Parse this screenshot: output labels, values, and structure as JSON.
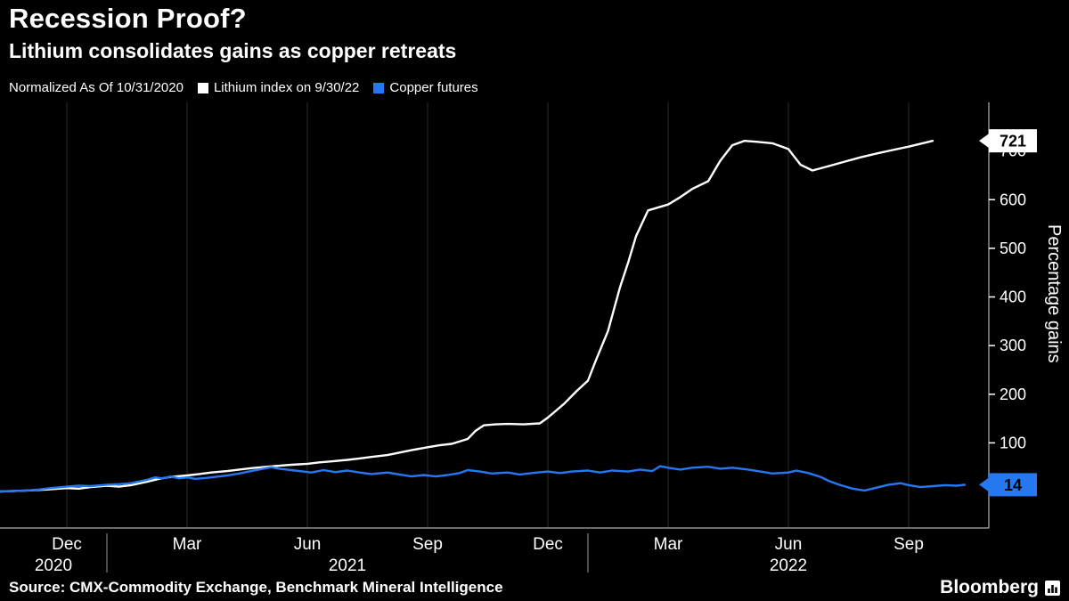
{
  "header": {
    "title": "Recession Proof?",
    "subtitle": "Lithium consolidates gains as copper retreats"
  },
  "legend": {
    "note": "Normalized As Of 10/31/2020",
    "items": [
      {
        "label": "Lithium index on 9/30/22",
        "color": "#ffffff"
      },
      {
        "label": "Copper futures",
        "color": "#2577f2"
      }
    ]
  },
  "chart_data": {
    "type": "line",
    "title": "Recession Proof?",
    "subtitle": "Lithium consolidates gains as copper retreats",
    "note": "Normalized As Of 10/31/2020",
    "ylabel": "Percentage gains",
    "ylim": [
      -75,
      800
    ],
    "yticks": [
      100,
      200,
      300,
      400,
      500,
      600,
      700
    ],
    "x_unit": "months since 2020-11-01",
    "xlim": [
      -0.667,
      24.0
    ],
    "xticks": [
      {
        "m": 1,
        "label": "Dec"
      },
      {
        "m": 4,
        "label": "Mar"
      },
      {
        "m": 7,
        "label": "Jun"
      },
      {
        "m": 10,
        "label": "Sep"
      },
      {
        "m": 13,
        "label": "Dec"
      },
      {
        "m": 16,
        "label": "Mar"
      },
      {
        "m": 19,
        "label": "Jun"
      },
      {
        "m": 22,
        "label": "Sep"
      }
    ],
    "year_ticks": [
      {
        "label": "2020",
        "start": -0.667,
        "end": 2
      },
      {
        "label": "2021",
        "start": 2,
        "end": 14
      },
      {
        "label": "2022",
        "start": 14,
        "end": 24
      }
    ],
    "colors": {
      "background": "#000000",
      "grid": "#2d2d2d",
      "axis": "#d9d9d9",
      "text": "#ffffff"
    },
    "legend_position": "top",
    "grid": "vertical-only",
    "series": [
      {
        "id": "lithium",
        "name": "Lithium index on 9/30/22",
        "color": "#ffffff",
        "end_label": "721",
        "end_value": 721,
        "points": [
          [
            -0.667,
            0
          ],
          [
            0,
            2
          ],
          [
            0.5,
            4
          ],
          [
            1,
            7
          ],
          [
            1.3,
            6
          ],
          [
            1.6,
            9
          ],
          [
            2,
            12
          ],
          [
            2.3,
            10
          ],
          [
            2.6,
            13
          ],
          [
            3,
            20
          ],
          [
            3.3,
            26
          ],
          [
            3.6,
            30
          ],
          [
            4,
            33
          ],
          [
            4.3,
            36
          ],
          [
            4.6,
            39
          ],
          [
            5,
            42
          ],
          [
            5.3,
            45
          ],
          [
            5.6,
            48
          ],
          [
            6,
            51
          ],
          [
            6.3,
            53
          ],
          [
            6.6,
            55
          ],
          [
            7,
            57
          ],
          [
            7.3,
            60
          ],
          [
            7.6,
            62
          ],
          [
            8,
            65
          ],
          [
            8.3,
            68
          ],
          [
            8.6,
            71
          ],
          [
            9,
            75
          ],
          [
            9.3,
            80
          ],
          [
            9.6,
            85
          ],
          [
            10,
            91
          ],
          [
            10.3,
            95
          ],
          [
            10.6,
            98
          ],
          [
            11,
            108
          ],
          [
            11.2,
            125
          ],
          [
            11.4,
            136
          ],
          [
            11.7,
            138
          ],
          [
            12,
            139
          ],
          [
            12.4,
            138
          ],
          [
            12.8,
            140
          ],
          [
            13,
            152
          ],
          [
            13.4,
            180
          ],
          [
            13.7,
            205
          ],
          [
            14,
            228
          ],
          [
            14.2,
            270
          ],
          [
            14.5,
            330
          ],
          [
            14.8,
            420
          ],
          [
            15,
            470
          ],
          [
            15.2,
            525
          ],
          [
            15.5,
            578
          ],
          [
            16,
            590
          ],
          [
            16.3,
            605
          ],
          [
            16.6,
            622
          ],
          [
            17,
            638
          ],
          [
            17.3,
            680
          ],
          [
            17.6,
            712
          ],
          [
            17.9,
            721
          ],
          [
            18.2,
            719
          ],
          [
            18.6,
            716
          ],
          [
            19,
            704
          ],
          [
            19.3,
            672
          ],
          [
            19.6,
            660
          ],
          [
            20,
            669
          ],
          [
            20.4,
            678
          ],
          [
            20.8,
            687
          ],
          [
            21.2,
            695
          ],
          [
            21.6,
            702
          ],
          [
            22,
            709
          ],
          [
            22.3,
            715
          ],
          [
            22.6,
            721
          ]
        ]
      },
      {
        "id": "copper",
        "name": "Copper futures",
        "color": "#2577f2",
        "end_label": "14",
        "end_value": 14,
        "points": [
          [
            -0.667,
            0
          ],
          [
            0,
            2
          ],
          [
            0.3,
            4
          ],
          [
            0.6,
            7
          ],
          [
            1,
            10
          ],
          [
            1.3,
            12
          ],
          [
            1.6,
            11
          ],
          [
            2,
            14
          ],
          [
            2.3,
            15
          ],
          [
            2.6,
            17
          ],
          [
            3,
            24
          ],
          [
            3.2,
            29
          ],
          [
            3.4,
            27
          ],
          [
            3.6,
            31
          ],
          [
            3.8,
            27
          ],
          [
            4,
            29
          ],
          [
            4.2,
            26
          ],
          [
            4.5,
            28
          ],
          [
            4.8,
            31
          ],
          [
            5,
            33
          ],
          [
            5.3,
            37
          ],
          [
            5.6,
            42
          ],
          [
            5.9,
            47
          ],
          [
            6.1,
            50
          ],
          [
            6.3,
            47
          ],
          [
            6.6,
            44
          ],
          [
            6.9,
            41
          ],
          [
            7.1,
            39
          ],
          [
            7.4,
            44
          ],
          [
            7.7,
            40
          ],
          [
            8,
            43
          ],
          [
            8.3,
            39
          ],
          [
            8.6,
            36
          ],
          [
            9,
            39
          ],
          [
            9.3,
            35
          ],
          [
            9.6,
            31
          ],
          [
            9.9,
            34
          ],
          [
            10.2,
            31
          ],
          [
            10.5,
            34
          ],
          [
            10.8,
            38
          ],
          [
            11,
            44
          ],
          [
            11.3,
            41
          ],
          [
            11.6,
            37
          ],
          [
            12,
            39
          ],
          [
            12.3,
            35
          ],
          [
            12.6,
            38
          ],
          [
            13,
            41
          ],
          [
            13.3,
            38
          ],
          [
            13.6,
            41
          ],
          [
            14,
            43
          ],
          [
            14.3,
            39
          ],
          [
            14.6,
            43
          ],
          [
            15,
            41
          ],
          [
            15.3,
            45
          ],
          [
            15.6,
            42
          ],
          [
            15.8,
            52
          ],
          [
            16,
            49
          ],
          [
            16.3,
            45
          ],
          [
            16.6,
            49
          ],
          [
            17,
            51
          ],
          [
            17.3,
            47
          ],
          [
            17.6,
            49
          ],
          [
            18,
            45
          ],
          [
            18.3,
            41
          ],
          [
            18.6,
            37
          ],
          [
            19,
            39
          ],
          [
            19.2,
            43
          ],
          [
            19.5,
            38
          ],
          [
            19.8,
            30
          ],
          [
            20,
            22
          ],
          [
            20.3,
            13
          ],
          [
            20.6,
            6
          ],
          [
            20.9,
            2
          ],
          [
            21.2,
            8
          ],
          [
            21.5,
            14
          ],
          [
            21.8,
            17
          ],
          [
            22,
            13
          ],
          [
            22.3,
            9
          ],
          [
            22.6,
            11
          ],
          [
            22.9,
            13
          ],
          [
            23.2,
            12
          ],
          [
            23.4,
            14
          ]
        ]
      }
    ]
  },
  "footer": {
    "source": "Source: CMX-Commodity Exchange, Benchmark Mineral Intelligence",
    "brand": "Bloomberg"
  }
}
